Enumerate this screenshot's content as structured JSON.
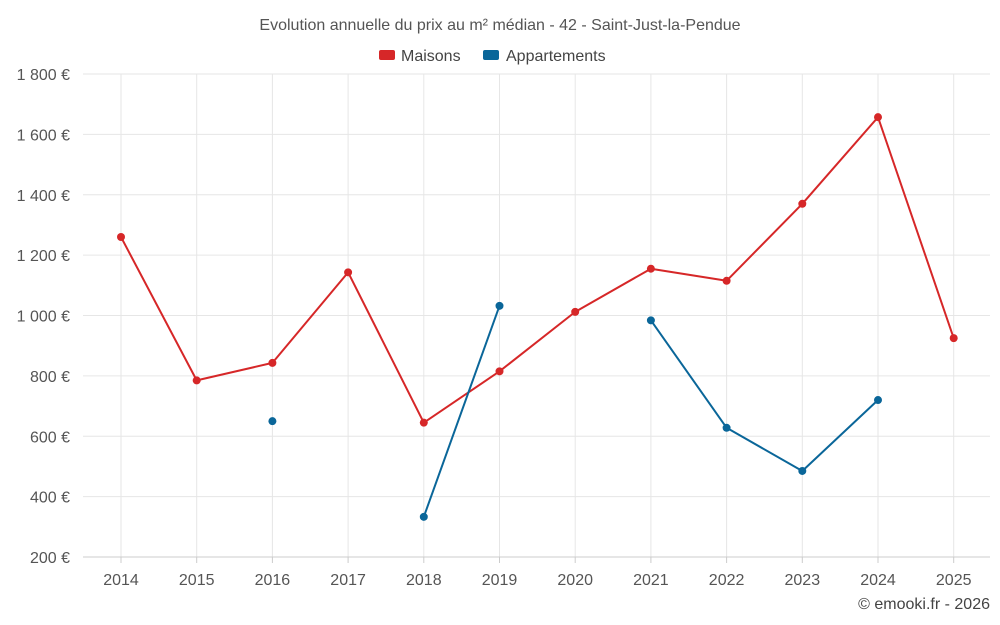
{
  "chart_data": {
    "type": "line",
    "title": "Evolution annuelle du prix au m² médian - 42 - Saint-Just-la-Pendue",
    "categories": [
      "2014",
      "2015",
      "2016",
      "2017",
      "2018",
      "2019",
      "2020",
      "2021",
      "2022",
      "2023",
      "2024",
      "2025"
    ],
    "y_ticks": [
      "200 €",
      "400 €",
      "600 €",
      "800 €",
      "1 000 €",
      "1 200 €",
      "1 400 €",
      "1 600 €",
      "1 800 €"
    ],
    "ylim": [
      200,
      1800
    ],
    "grid": true,
    "legend_position": "top-center",
    "series": [
      {
        "name": "Maisons",
        "color": "#d62728",
        "values": [
          1260,
          785,
          843,
          1143,
          645,
          815,
          1012,
          1155,
          1115,
          1370,
          1657,
          925
        ]
      },
      {
        "name": "Appartements",
        "color": "#0a6699",
        "values": [
          null,
          null,
          650,
          null,
          333,
          1032,
          null,
          984,
          628,
          485,
          720,
          null
        ]
      }
    ],
    "credit": "© emooki.fr - 2026"
  }
}
